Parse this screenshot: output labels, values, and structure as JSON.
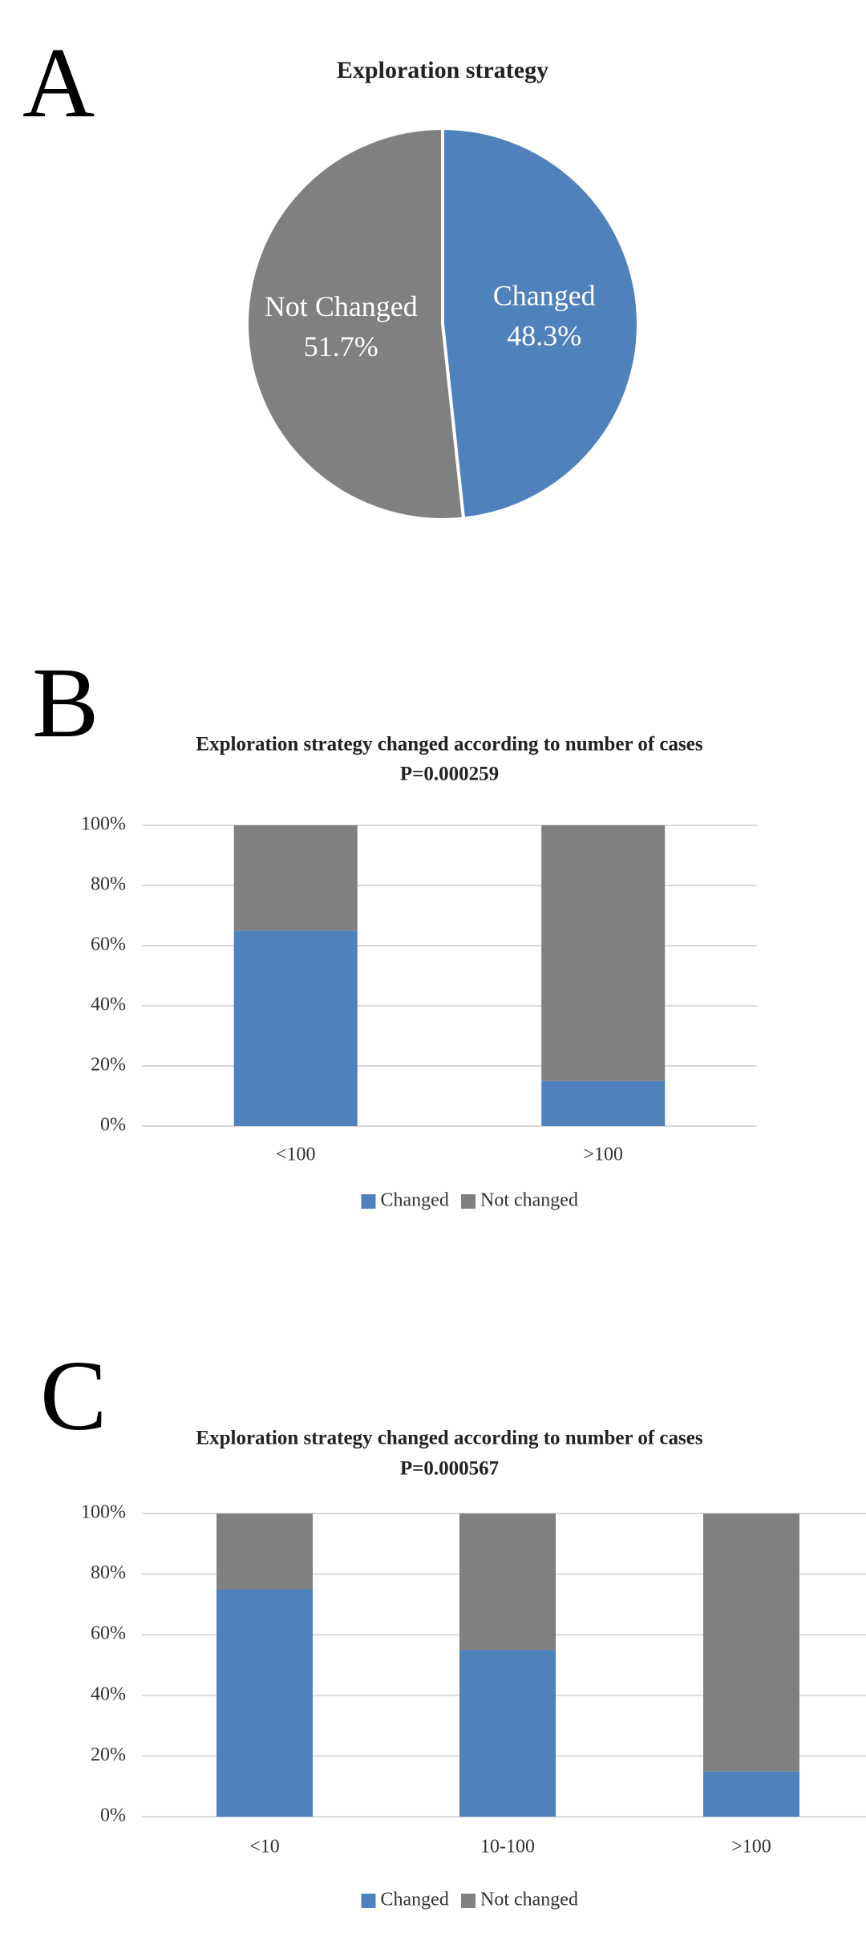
{
  "chart_data": [
    {
      "type": "pie",
      "label": "A",
      "title": "Exploration strategy",
      "categories": [
        "Changed",
        "Not Changed"
      ],
      "values": [
        48.3,
        51.7
      ],
      "value_labels": [
        "48.3%",
        "51.7%"
      ],
      "colors": [
        "#4f81bd",
        "#808080"
      ]
    },
    {
      "type": "stacked_bar",
      "label": "B",
      "title": "Exploration strategy changed according to number of cases",
      "subtitle": "P=0.000259",
      "categories": [
        "<100",
        ">100"
      ],
      "series": [
        {
          "name": "Changed",
          "color": "#4f81bd",
          "values": [
            65,
            15
          ]
        },
        {
          "name": "Not changed",
          "color": "#808080",
          "values": [
            35,
            85
          ]
        }
      ],
      "ylim": [
        0,
        100
      ],
      "yticks": [
        {
          "value": 0,
          "label": "0%"
        },
        {
          "value": 20,
          "label": "20%"
        },
        {
          "value": 40,
          "label": "40%"
        },
        {
          "value": 60,
          "label": "60%"
        },
        {
          "value": 80,
          "label": "80%"
        },
        {
          "value": 100,
          "label": "100%"
        }
      ],
      "grid": true,
      "legend": "bottom"
    },
    {
      "type": "stacked_bar",
      "label": "C",
      "title": "Exploration strategy changed according to number of cases",
      "subtitle": "P=0.000567",
      "categories": [
        "<10",
        "10-100",
        ">100"
      ],
      "series": [
        {
          "name": "Changed",
          "color": "#4f81bd",
          "values": [
            75,
            55,
            15
          ]
        },
        {
          "name": "Not changed",
          "color": "#808080",
          "values": [
            25,
            45,
            85
          ]
        }
      ],
      "ylim": [
        0,
        100
      ],
      "yticks": [
        {
          "value": 0,
          "label": "0%"
        },
        {
          "value": 20,
          "label": "20%"
        },
        {
          "value": 40,
          "label": "40%"
        },
        {
          "value": 60,
          "label": "60%"
        },
        {
          "value": 80,
          "label": "80%"
        },
        {
          "value": 100,
          "label": "100%"
        }
      ],
      "grid": true,
      "legend": "bottom"
    }
  ]
}
